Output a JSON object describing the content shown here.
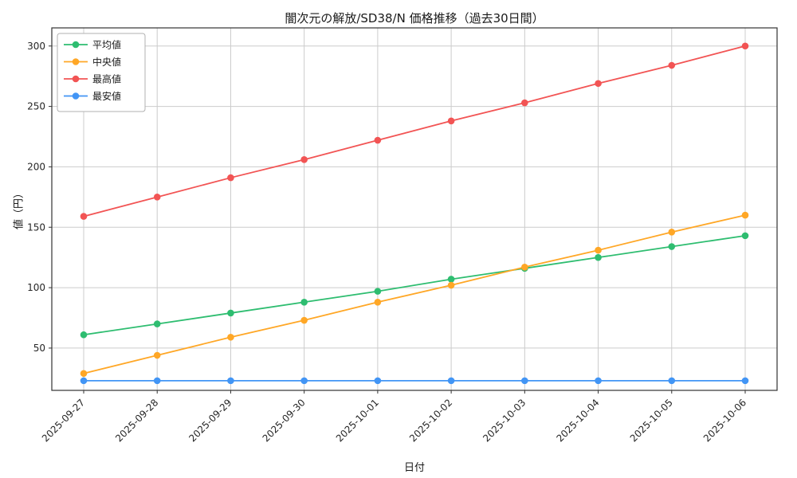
{
  "chart_data": {
    "type": "line",
    "title": "闇次元の解放/SD38/N 価格推移（過去30日間）",
    "xlabel": "日付",
    "ylabel": "値（円）",
    "x": [
      "2025-09-27",
      "2025-09-28",
      "2025-09-29",
      "2025-09-30",
      "2025-10-01",
      "2025-10-02",
      "2025-10-03",
      "2025-10-04",
      "2025-10-05",
      "2025-10-06"
    ],
    "series": [
      {
        "name": "平均値",
        "color": "#2ebd70",
        "values": [
          61,
          70,
          79,
          88,
          97,
          107,
          116,
          125,
          134,
          143
        ]
      },
      {
        "name": "中央値",
        "color": "#ffa726",
        "values": [
          29,
          44,
          59,
          73,
          88,
          102,
          117,
          131,
          146,
          160
        ]
      },
      {
        "name": "最高値",
        "color": "#f25454",
        "values": [
          159,
          175,
          191,
          206,
          222,
          238,
          253,
          269,
          284,
          300
        ]
      },
      {
        "name": "最安値",
        "color": "#4295f5",
        "values": [
          23,
          23,
          23,
          23,
          23,
          23,
          23,
          23,
          23,
          23
        ]
      }
    ],
    "ylim": [
      15,
      315
    ],
    "yticks": [
      50,
      100,
      150,
      200,
      250,
      300
    ],
    "grid": true,
    "legend_position": "upper left",
    "axis_color": "#333333",
    "grid_color": "#cccccc"
  }
}
